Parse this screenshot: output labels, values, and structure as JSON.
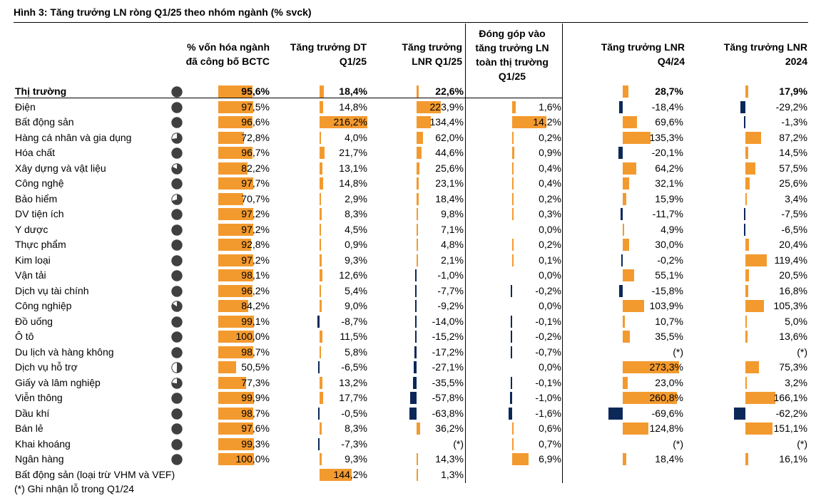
{
  "title": "Hình 3: Tăng trưởng LN ròng Q1/25 theo nhóm ngành (% svck)",
  "footnote": "(*) Ghi nhận lỗ trong Q1/24",
  "colors": {
    "positive_bar": "#f39a2f",
    "negative_bar": "#0c2859",
    "pie": "#404040"
  },
  "headers": {
    "cap": "% vốn hóa ngành\nđã công bố BCTC",
    "rev": "Tăng trưởng DT\nQ1/25",
    "lnr": "Tăng trưởng\nLNR Q1/25",
    "contrib": "Đóng góp vào\ntăng trưởng LN\ntoàn thị trường\nQ1/25",
    "q4": "Tăng trưởng LNR\nQ4/24",
    "y24": "Tăng trưởng LNR\n2024"
  },
  "rows": [
    {
      "name": "Thị trường",
      "cap": "95,6%",
      "rev": "18,4%",
      "lnr": "22,6%",
      "contrib": "",
      "q4": "28,7%",
      "y24": "17,9%",
      "pie": 0.956,
      "capn": 95.6,
      "revn": 18.4,
      "lnrn": 22.6,
      "contribn": null,
      "q4n": 28.7,
      "y24n": 17.9
    },
    {
      "name": "Điện",
      "cap": "97,5%",
      "rev": "14,8%",
      "lnr": "223,9%",
      "contrib": "1,6%",
      "q4": "-18,4%",
      "y24": "-29,2%",
      "pie": 0.975,
      "capn": 97.5,
      "revn": 14.8,
      "lnrn": 223.9,
      "contribn": 1.6,
      "q4n": -18.4,
      "y24n": -29.2
    },
    {
      "name": "Bất động sản",
      "cap": "96,6%",
      "rev": "216,2%",
      "lnr": "134,4%",
      "contrib": "14,2%",
      "q4": "69,6%",
      "y24": "-1,3%",
      "pie": 0.966,
      "capn": 96.6,
      "revn": 216.2,
      "lnrn": 134.4,
      "contribn": 14.2,
      "q4n": 69.6,
      "y24n": -1.3
    },
    {
      "name": "Hàng cá nhân và gia dụng",
      "cap": "72,8%",
      "rev": "4,0%",
      "lnr": "62,0%",
      "contrib": "0,2%",
      "q4": "135,3%",
      "y24": "87,2%",
      "pie": 0.728,
      "capn": 72.8,
      "revn": 4.0,
      "lnrn": 62.0,
      "contribn": 0.2,
      "q4n": 135.3,
      "y24n": 87.2
    },
    {
      "name": "Hóa chất",
      "cap": "96,7%",
      "rev": "21,7%",
      "lnr": "44,6%",
      "contrib": "0,9%",
      "q4": "-20,1%",
      "y24": "14,5%",
      "pie": 0.967,
      "capn": 96.7,
      "revn": 21.7,
      "lnrn": 44.6,
      "contribn": 0.9,
      "q4n": -20.1,
      "y24n": 14.5
    },
    {
      "name": "Xây dựng và vật liệu",
      "cap": "82,2%",
      "rev": "13,1%",
      "lnr": "25,6%",
      "contrib": "0,4%",
      "q4": "64,2%",
      "y24": "57,5%",
      "pie": 0.822,
      "capn": 82.2,
      "revn": 13.1,
      "lnrn": 25.6,
      "contribn": 0.4,
      "q4n": 64.2,
      "y24n": 57.5
    },
    {
      "name": "Công nghệ",
      "cap": "97,7%",
      "rev": "14,8%",
      "lnr": "23,1%",
      "contrib": "0,4%",
      "q4": "32,1%",
      "y24": "25,6%",
      "pie": 0.977,
      "capn": 97.7,
      "revn": 14.8,
      "lnrn": 23.1,
      "contribn": 0.4,
      "q4n": 32.1,
      "y24n": 25.6
    },
    {
      "name": "Bảo hiểm",
      "cap": "70,7%",
      "rev": "2,9%",
      "lnr": "18,4%",
      "contrib": "0,2%",
      "q4": "15,9%",
      "y24": "3,4%",
      "pie": 0.707,
      "capn": 70.7,
      "revn": 2.9,
      "lnrn": 18.4,
      "contribn": 0.2,
      "q4n": 15.9,
      "y24n": 3.4
    },
    {
      "name": "DV tiện ích",
      "cap": "97,2%",
      "rev": "8,3%",
      "lnr": "9,8%",
      "contrib": "0,3%",
      "q4": "-11,7%",
      "y24": "-7,5%",
      "pie": 0.972,
      "capn": 97.2,
      "revn": 8.3,
      "lnrn": 9.8,
      "contribn": 0.3,
      "q4n": -11.7,
      "y24n": -7.5
    },
    {
      "name": "Y dược",
      "cap": "97,2%",
      "rev": "4,5%",
      "lnr": "7,1%",
      "contrib": "0,0%",
      "q4": "4,9%",
      "y24": "-6,5%",
      "pie": 0.972,
      "capn": 97.2,
      "revn": 4.5,
      "lnrn": 7.1,
      "contribn": 0.0,
      "q4n": 4.9,
      "y24n": -6.5
    },
    {
      "name": "Thực phẩm",
      "cap": "92,8%",
      "rev": "0,9%",
      "lnr": "4,8%",
      "contrib": "0,2%",
      "q4": "30,0%",
      "y24": "20,4%",
      "pie": 0.928,
      "capn": 92.8,
      "revn": 0.9,
      "lnrn": 4.8,
      "contribn": 0.2,
      "q4n": 30.0,
      "y24n": 20.4
    },
    {
      "name": "Kim loại",
      "cap": "97,2%",
      "rev": "9,3%",
      "lnr": "2,1%",
      "contrib": "0,1%",
      "q4": "-0,2%",
      "y24": "119,4%",
      "pie": 0.972,
      "capn": 97.2,
      "revn": 9.3,
      "lnrn": 2.1,
      "contribn": 0.1,
      "q4n": -0.2,
      "y24n": 119.4
    },
    {
      "name": "Vận tải",
      "cap": "98,1%",
      "rev": "12,6%",
      "lnr": "-1,0%",
      "contrib": "0,0%",
      "q4": "55,1%",
      "y24": "20,5%",
      "pie": 0.981,
      "capn": 98.1,
      "revn": 12.6,
      "lnrn": -1.0,
      "contribn": 0.0,
      "q4n": 55.1,
      "y24n": 20.5
    },
    {
      "name": "Dịch vụ tài chính",
      "cap": "96,2%",
      "rev": "5,4%",
      "lnr": "-7,7%",
      "contrib": "-0,2%",
      "q4": "-15,8%",
      "y24": "16,8%",
      "pie": 0.962,
      "capn": 96.2,
      "revn": 5.4,
      "lnrn": -7.7,
      "contribn": -0.2,
      "q4n": -15.8,
      "y24n": 16.8
    },
    {
      "name": "Công nghiệp",
      "cap": "84,2%",
      "rev": "9,0%",
      "lnr": "-9,2%",
      "contrib": "0,0%",
      "q4": "103,9%",
      "y24": "105,3%",
      "pie": 0.842,
      "capn": 84.2,
      "revn": 9.0,
      "lnrn": -9.2,
      "contribn": 0.0,
      "q4n": 103.9,
      "y24n": 105.3
    },
    {
      "name": "Đồ uống",
      "cap": "99,1%",
      "rev": "-8,7%",
      "lnr": "-14,0%",
      "contrib": "-0,1%",
      "q4": "10,7%",
      "y24": "5,0%",
      "pie": 0.991,
      "capn": 99.1,
      "revn": -8.7,
      "lnrn": -14.0,
      "contribn": -0.1,
      "q4n": 10.7,
      "y24n": 5.0
    },
    {
      "name": "Ô tô",
      "cap": "100,0%",
      "rev": "11,5%",
      "lnr": "-15,2%",
      "contrib": "-0,2%",
      "q4": "35,5%",
      "y24": "13,6%",
      "pie": 1.0,
      "capn": 100.0,
      "revn": 11.5,
      "lnrn": -15.2,
      "contribn": -0.2,
      "q4n": 35.5,
      "y24n": 13.6
    },
    {
      "name": "Du lịch và hàng không",
      "cap": "98,7%",
      "rev": "5,8%",
      "lnr": "-17,2%",
      "contrib": "-0,7%",
      "q4": "(*)",
      "y24": "(*)",
      "pie": 0.987,
      "capn": 98.7,
      "revn": 5.8,
      "lnrn": -17.2,
      "contribn": -0.7,
      "q4n": null,
      "y24n": null
    },
    {
      "name": "Dịch vụ hỗ trợ",
      "cap": "50,5%",
      "rev": "-6,5%",
      "lnr": "-27,1%",
      "contrib": "0,0%",
      "q4": "273,3%",
      "y24": "75,3%",
      "pie": 0.505,
      "capn": 50.5,
      "revn": -6.5,
      "lnrn": -27.1,
      "contribn": 0.0,
      "q4n": 273.3,
      "y24n": 75.3
    },
    {
      "name": "Giấy và lâm nghiệp",
      "cap": "77,3%",
      "rev": "13,2%",
      "lnr": "-35,5%",
      "contrib": "-0,1%",
      "q4": "23,0%",
      "y24": "3,2%",
      "pie": 0.773,
      "capn": 77.3,
      "revn": 13.2,
      "lnrn": -35.5,
      "contribn": -0.1,
      "q4n": 23.0,
      "y24n": 3.2
    },
    {
      "name": "Viễn thông",
      "cap": "99,9%",
      "rev": "17,7%",
      "lnr": "-57,8%",
      "contrib": "-1,0%",
      "q4": "260,8%",
      "y24": "166,1%",
      "pie": 0.999,
      "capn": 99.9,
      "revn": 17.7,
      "lnrn": -57.8,
      "contribn": -1.0,
      "q4n": 260.8,
      "y24n": 166.1
    },
    {
      "name": "Dầu khí",
      "cap": "98,7%",
      "rev": "-0,5%",
      "lnr": "-63,8%",
      "contrib": "-1,6%",
      "q4": "-69,6%",
      "y24": "-62,2%",
      "pie": 0.987,
      "capn": 98.7,
      "revn": -0.5,
      "lnrn": -63.8,
      "contribn": -1.6,
      "q4n": -69.6,
      "y24n": -62.2
    },
    {
      "name": "Bán lẻ",
      "cap": "97,6%",
      "rev": "8,3%",
      "lnr": "36,2%",
      "contrib": "0,6%",
      "q4": "124,8%",
      "y24": "151,1%",
      "pie": 0.976,
      "capn": 97.6,
      "revn": 8.3,
      "lnrn": 36.2,
      "contribn": 0.6,
      "q4n": 124.8,
      "y24n": 151.1
    },
    {
      "name": "Khai khoáng",
      "cap": "99,3%",
      "rev": "-7,3%",
      "lnr": "(*)",
      "contrib": "0,7%",
      "q4": "(*)",
      "y24": "(*)",
      "pie": 0.993,
      "capn": 99.3,
      "revn": -7.3,
      "lnrn": null,
      "contribn": 0.7,
      "q4n": null,
      "y24n": null
    },
    {
      "name": "Ngân hàng",
      "cap": "100,0%",
      "rev": "9,3%",
      "lnr": "14,3%",
      "contrib": "6,9%",
      "q4": "18,4%",
      "y24": "16,1%",
      "pie": 1.0,
      "capn": 100.0,
      "revn": 9.3,
      "lnrn": 14.3,
      "contribn": 6.9,
      "q4n": 18.4,
      "y24n": 16.1
    },
    {
      "name": "Bất động sản (loại trừ VHM và VEF)",
      "cap": "",
      "rev": "144,2%",
      "lnr": "1,3%",
      "contrib": "",
      "q4": "",
      "y24": "",
      "pie": null,
      "capn": null,
      "revn": 144.2,
      "lnrn": 1.3,
      "contribn": null,
      "q4n": null,
      "y24n": null
    }
  ]
}
